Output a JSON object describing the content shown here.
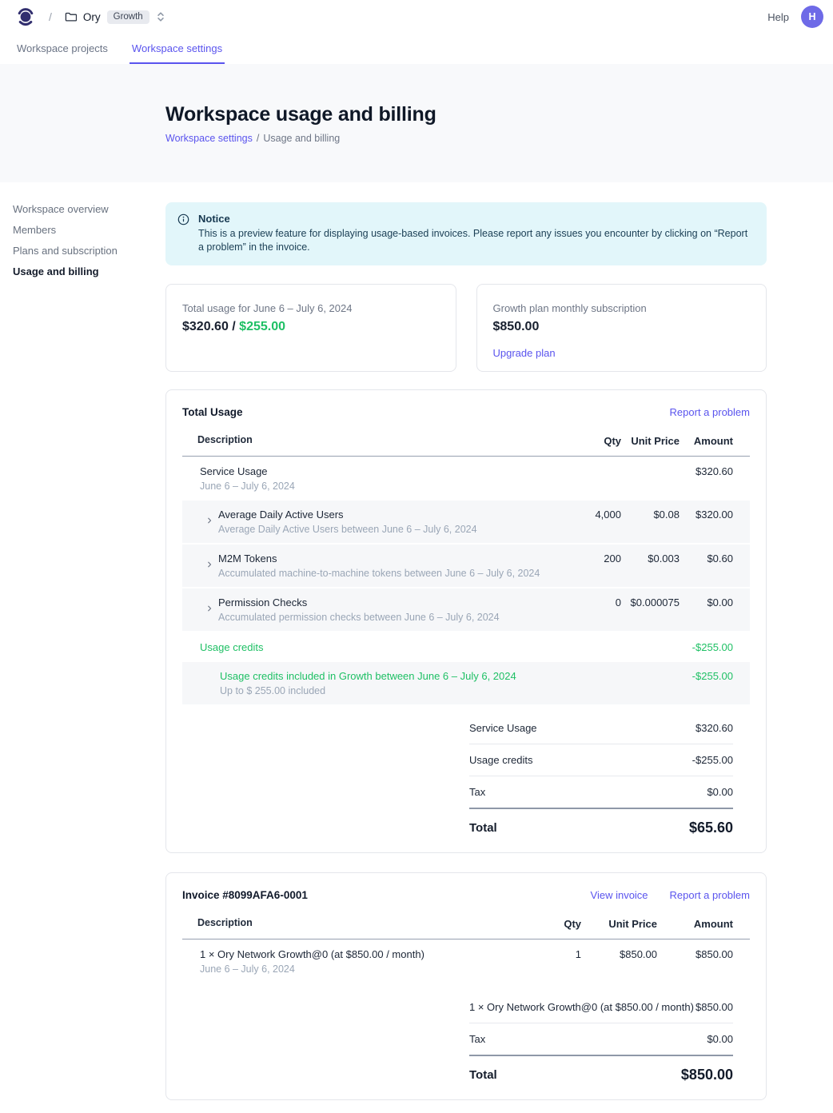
{
  "topbar": {
    "slash": "/",
    "workspace_name": "Ory",
    "workspace_badge": "Growth",
    "help_label": "Help",
    "avatar_initial": "H"
  },
  "tabs": {
    "projects": "Workspace projects",
    "settings": "Workspace settings"
  },
  "hero": {
    "title": "Workspace usage and billing",
    "breadcrumb_link": "Workspace settings",
    "breadcrumb_separator": "/",
    "breadcrumb_current": "Usage and billing"
  },
  "sidebar": {
    "items": [
      {
        "label": "Workspace overview",
        "active": false
      },
      {
        "label": "Members",
        "active": false
      },
      {
        "label": "Plans and subscription",
        "active": false
      },
      {
        "label": "Usage and billing",
        "active": true
      }
    ]
  },
  "notice": {
    "title": "Notice",
    "body": "This is a preview feature for displaying usage-based invoices. Please report any issues you encounter by clicking on “Report a problem” in the invoice."
  },
  "summary_cards": {
    "usage": {
      "label": "Total usage for June 6 – July 6, 2024",
      "used_and_separator": "$320.60 / ",
      "included": "$255.00"
    },
    "plan": {
      "label": "Growth plan monthly subscription",
      "value": "$850.00",
      "upgrade_link": "Upgrade plan"
    }
  },
  "usage_card": {
    "title": "Total Usage",
    "report_link": "Report a problem",
    "columns": [
      "Description",
      "Qty",
      "Unit Price",
      "Amount"
    ],
    "rows": [
      {
        "type": "group",
        "title": "Service Usage",
        "subtitle": "June 6 – July 6, 2024",
        "qty": "",
        "unit": "",
        "amount": "$320.60"
      },
      {
        "type": "sub",
        "title": "Average Daily Active Users",
        "subtitle": "Average Daily Active Users between June 6 – July 6, 2024",
        "qty": "4,000",
        "unit": "$0.08",
        "amount": "$320.00"
      },
      {
        "type": "sub",
        "title": "M2M Tokens",
        "subtitle": "Accumulated machine-to-machine tokens between June 6 – July 6, 2024",
        "qty": "200",
        "unit": "$0.003",
        "amount": "$0.60"
      },
      {
        "type": "sub",
        "title": "Permission Checks",
        "subtitle": "Accumulated permission checks between June 6 – July 6, 2024",
        "qty": "0",
        "unit": "$0.000075",
        "amount": "$0.00"
      },
      {
        "type": "group",
        "color": "green",
        "title": "Usage credits",
        "subtitle": "",
        "qty": "",
        "unit": "",
        "amount": "-$255.00"
      },
      {
        "type": "credit-sub",
        "color": "green",
        "title": "Usage credits included in Growth between June 6 – July 6, 2024",
        "subtitle": "Up to $ 255.00 included",
        "qty": "",
        "unit": "",
        "amount": "-$255.00"
      }
    ],
    "summary": [
      {
        "label": "Service Usage",
        "value": "$320.60"
      },
      {
        "label": "Usage credits",
        "value": "-$255.00"
      },
      {
        "label": "Tax",
        "value": "$0.00",
        "pre_total": true
      },
      {
        "label": "Total",
        "value": "$65.60",
        "total": true
      }
    ]
  },
  "invoice_card": {
    "title": "Invoice #8099AFA6-0001",
    "view_link": "View invoice",
    "report_link": "Report a problem",
    "columns": [
      "Description",
      "Qty",
      "Unit Price",
      "Amount"
    ],
    "rows": [
      {
        "type": "group",
        "title": "1 × Ory Network Growth@0 (at $850.00 / month)",
        "subtitle": "June 6 – July 6, 2024",
        "qty": "1",
        "unit": "$850.00",
        "amount": "$850.00"
      }
    ],
    "summary": [
      {
        "label": "1 × Ory Network Growth@0 (at $850.00 / month)",
        "value": "$850.00"
      },
      {
        "label": "Tax",
        "value": "$0.00",
        "pre_total": true
      },
      {
        "label": "Total",
        "value": "$850.00",
        "total": true
      }
    ]
  },
  "colors": {
    "accent": "#5A54EE",
    "success_green": "#1FC065",
    "notice_bg": "#E2F6FA",
    "notice_text": "#163850",
    "hero_bg": "#F8F9FB",
    "row_bg": "#F6F7F9",
    "logo_indigo": "#312E6E",
    "avatar_bg": "#6E6AE7"
  }
}
